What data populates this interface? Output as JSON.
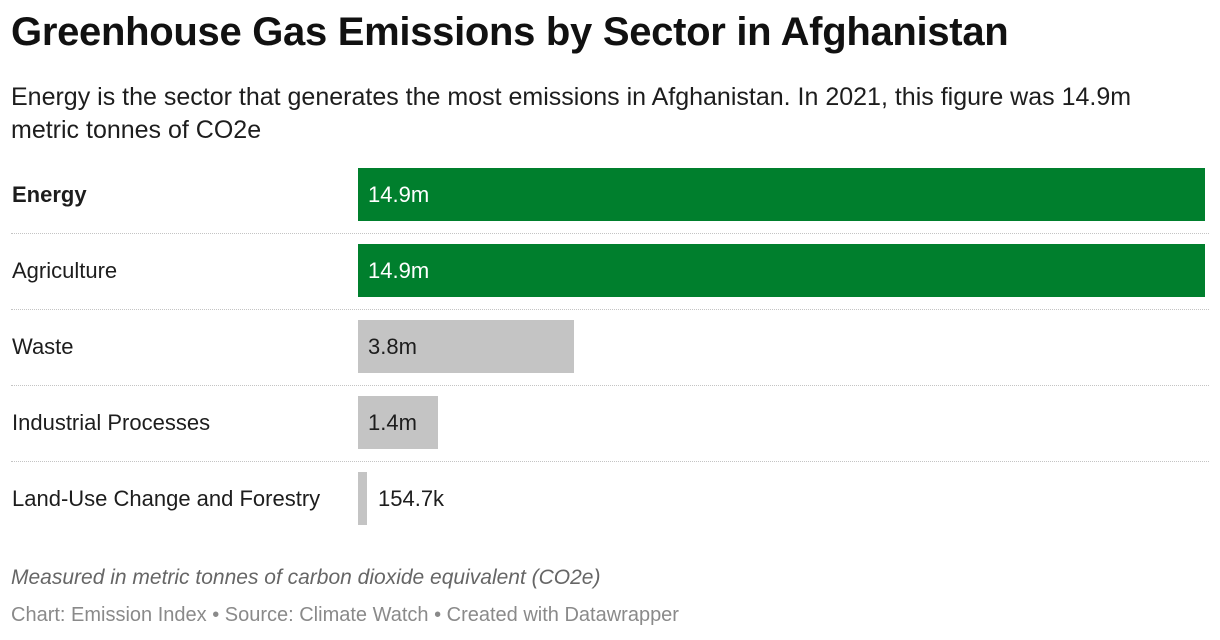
{
  "title": "Greenhouse Gas Emissions by Sector in Afghanistan",
  "subtitle": "Energy is the sector that generates the most emissions in Afghanistan. In 2021, this figure was 14.9m metric tonnes of CO2e",
  "colors": {
    "highlight": "#007f2d",
    "muted": "#c4c4c4"
  },
  "chart_data": {
    "type": "bar",
    "orientation": "horizontal",
    "categories": [
      "Energy",
      "Agriculture",
      "Waste",
      "Industrial Processes",
      "Land-Use Change and Forestry"
    ],
    "values": [
      14900000,
      14900000,
      3800000,
      1400000,
      154700
    ],
    "value_labels": [
      "14.9m",
      "14.9m",
      "3.8m",
      "1.4m",
      "154.7k"
    ],
    "bold_category": "Energy",
    "highlighted": [
      "Energy",
      "Agriculture"
    ],
    "xlim": [
      0,
      14950000
    ],
    "grid": false
  },
  "footer": {
    "note": "Measured in metric tonnes of carbon dioxide equivalent (CO2e)",
    "credits": "Chart: Emission Index • Source: Climate Watch • Created with Datawrapper"
  }
}
